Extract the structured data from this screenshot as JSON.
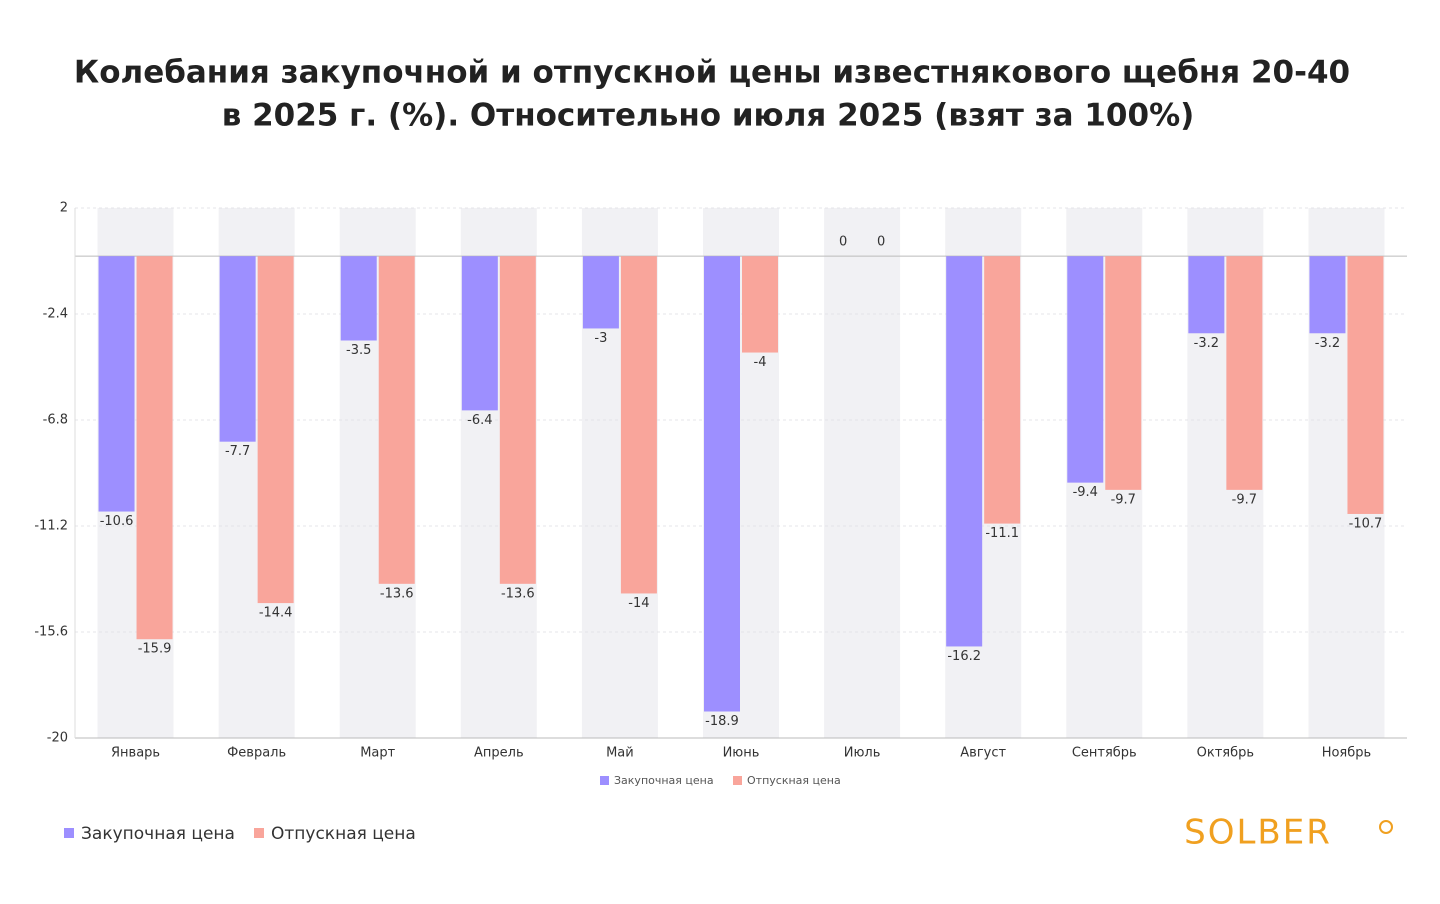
{
  "chart_data": {
    "type": "bar",
    "title": [
      "Колебания закупочной и отпускной цены известнякового щебня 20-40",
      "в 2025 г. (%). Относительно июля 2025 (взят за 100%)"
    ],
    "categories": [
      "Январь",
      "Февраль",
      "Март",
      "Апрель",
      "Май",
      "Июнь",
      "Июль",
      "Август",
      "Сентябрь",
      "Октябрь",
      "Ноябрь"
    ],
    "series": [
      {
        "name": "Закупочная цена",
        "color": "#9d8fff",
        "values": [
          -10.6,
          -7.7,
          -3.5,
          -6.4,
          -3,
          -18.9,
          0,
          -16.2,
          -9.4,
          -3.2,
          -3.2
        ]
      },
      {
        "name": "Отпускная цена",
        "color": "#f9a59b",
        "values": [
          -15.9,
          -14.4,
          -13.6,
          -13.6,
          -14,
          -4,
          0,
          -11.1,
          -9.7,
          -9.7,
          -10.7
        ]
      }
    ],
    "ylim": [
      -20,
      2
    ],
    "yticks": [
      2,
      -2.4,
      -6.8,
      -11.2,
      -15.6,
      -20
    ],
    "grid": true,
    "logo": "SOLBER"
  }
}
